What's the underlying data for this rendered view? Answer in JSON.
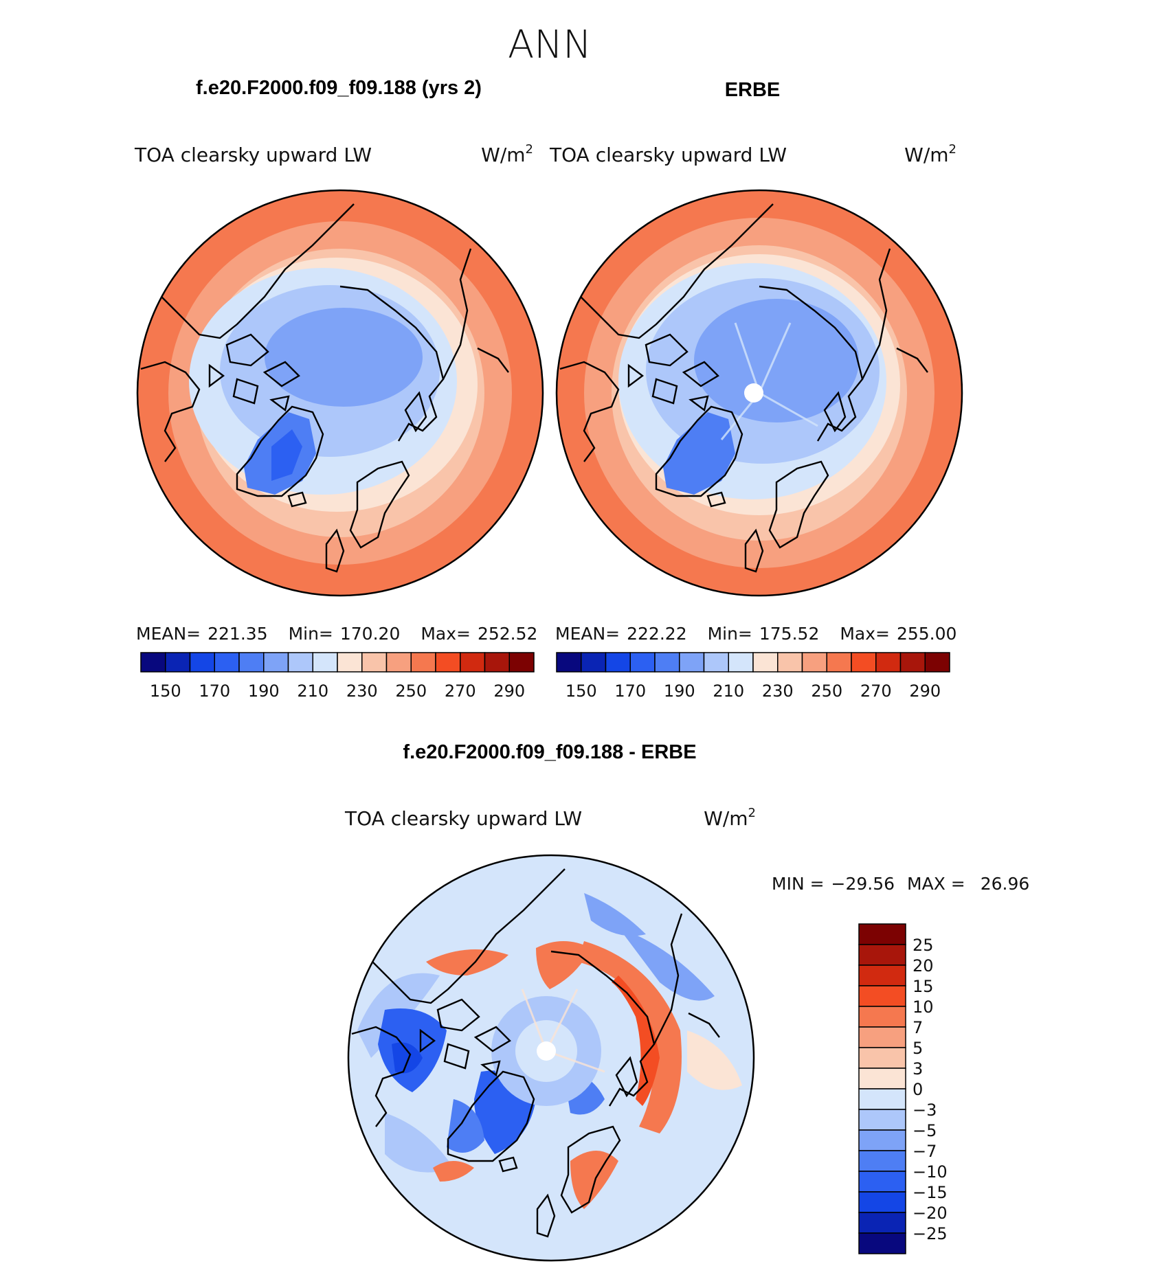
{
  "figure": {
    "season": "ANN"
  },
  "palettes": {
    "abs": [
      "#08087e",
      "#0a24b4",
      "#1446e6",
      "#2c60f2",
      "#4e7ef4",
      "#7ea3f7",
      "#adc7fa",
      "#d4e5fb",
      "#fbe4d5",
      "#f9c4aa",
      "#f7a07f",
      "#f5784f",
      "#f34d23",
      "#d12a10",
      "#a8160b",
      "#7c0202"
    ],
    "diff": [
      "#7c0202",
      "#a8160b",
      "#d12a10",
      "#f34d23",
      "#f5784f",
      "#f7a07f",
      "#f9c4aa",
      "#fbe4d5",
      "#d4e5fb",
      "#adc7fa",
      "#7ea3f7",
      "#4e7ef4",
      "#2c60f2",
      "#1446e6",
      "#0a24b4",
      "#08087e"
    ]
  },
  "chart_data": [
    {
      "type": "heatmap",
      "projection": "north-polar-stereographic",
      "title": "f.e20.F2000.f09_f09.188 (yrs 2)",
      "variable": "TOA clearsky upward LW",
      "units": "W/m",
      "units_exp": "2",
      "stats": {
        "mean_label": "MEAN=",
        "mean": "221.35",
        "min_label": "Min=",
        "min": "170.20",
        "max_label": "Max=",
        "max": "252.52"
      },
      "colorbar": {
        "orientation": "horizontal",
        "levels": [
          "150",
          "170",
          "190",
          "210",
          "230",
          "250",
          "270",
          "290"
        ],
        "n_colors": 16
      }
    },
    {
      "type": "heatmap",
      "projection": "north-polar-stereographic",
      "title": "ERBE",
      "variable": "TOA clearsky upward LW",
      "units": "W/m",
      "units_exp": "2",
      "stats": {
        "mean_label": "MEAN=",
        "mean": "222.22",
        "min_label": "Min=",
        "min": "175.52",
        "max_label": "Max=",
        "max": "255.00"
      },
      "colorbar": {
        "orientation": "horizontal",
        "levels": [
          "150",
          "170",
          "190",
          "210",
          "230",
          "250",
          "270",
          "290"
        ],
        "n_colors": 16
      }
    },
    {
      "type": "heatmap",
      "projection": "north-polar-stereographic",
      "title": "f.e20.F2000.f09_f09.188 - ERBE",
      "variable": "TOA clearsky upward LW",
      "units": "W/m",
      "units_exp": "2",
      "stats": {
        "min_label": "MIN =",
        "min": "−29.56",
        "max_label": "MAX =",
        "max": "26.96"
      },
      "colorbar": {
        "orientation": "vertical",
        "levels": [
          "25",
          "20",
          "15",
          "10",
          "7",
          "5",
          "3",
          "0",
          "−3",
          "−5",
          "−7",
          "−10",
          "−15",
          "−20",
          "−25"
        ],
        "n_colors": 16
      }
    }
  ]
}
